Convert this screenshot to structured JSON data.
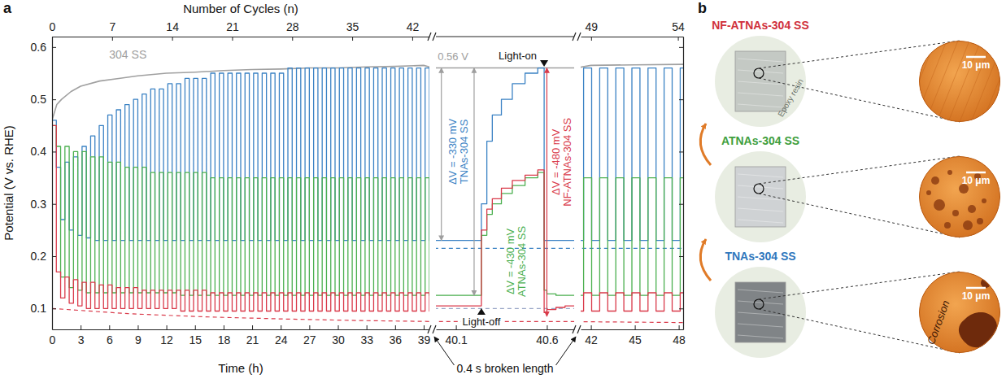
{
  "chart_data": {
    "type": "line",
    "panel_label": "a",
    "x_label": "Time (h)",
    "x2_label": "Number of Cycles (n)",
    "y_label": "Potential (V vs. RHE)",
    "break_label": "0.4 s broken length",
    "ylim": [
      0.06,
      0.62
    ],
    "yticks": [
      0.1,
      0.2,
      0.3,
      0.4,
      0.5,
      0.6
    ],
    "segments": [
      {
        "xlim": [
          0,
          39.6
        ],
        "xticks": [
          0,
          3,
          6,
          9,
          12,
          15,
          18,
          21,
          24,
          27,
          30,
          33,
          36,
          39
        ],
        "x2lim": [
          0,
          44
        ],
        "x2ticks": [
          0,
          7,
          14,
          21,
          28,
          35,
          42
        ]
      },
      {
        "xlim": [
          39.99,
          40.75
        ],
        "xticks": [
          40.1,
          40.6
        ]
      },
      {
        "xlim": [
          41.3,
          48.3
        ],
        "xticks": [
          42,
          45,
          48
        ],
        "x2lim": [
          48.4,
          54.3
        ],
        "x2ticks": [
          49,
          54
        ]
      }
    ],
    "x": [
      0,
      0.45,
      0.9,
      1.35,
      1.8,
      2.25,
      2.7,
      3.15,
      3.6,
      4.05,
      4.5,
      4.95,
      5.4,
      5.85,
      6.3,
      6.75,
      7.2,
      7.65,
      8.1,
      8.55,
      9,
      9.45,
      9.9,
      10.35,
      10.8,
      11.25,
      11.7,
      12.15,
      12.6,
      13.05,
      13.5,
      13.95,
      14.4,
      14.85,
      15.3,
      15.75,
      16.2,
      16.65,
      17.1,
      17.55,
      18,
      18.45,
      18.9,
      19.35,
      19.8,
      20.25,
      20.7,
      21.15,
      21.6,
      22.05,
      22.5,
      22.95,
      23.4,
      23.85,
      24.3,
      24.75,
      25.2,
      25.65,
      26.1,
      26.55,
      27,
      27.45,
      27.9,
      28.35,
      28.8,
      29.25,
      29.7,
      30.15,
      30.6,
      31.05,
      31.5,
      31.95,
      32.4,
      32.85,
      33.3,
      33.75,
      34.2,
      34.65,
      35.1,
      35.55,
      36,
      36.45,
      36.9,
      37.35,
      37.8,
      38.25,
      38.7,
      39.15,
      39.6,
      39.95,
      40.24,
      40.27,
      40.3,
      40.35,
      40.41,
      40.48,
      40.55,
      40.585,
      40.6,
      40.65,
      40.7,
      40.8,
      41.2,
      41.5,
      42.05,
      42.6,
      43.15,
      43.7,
      44.25,
      44.8,
      45.35,
      45.9,
      46.45,
      47,
      47.55,
      48.1,
      48.5
    ],
    "series": [
      {
        "name": "304 SS",
        "color": "#a0a0a0",
        "line_style": "solid",
        "x": [
          0,
          0.5,
          1,
          2,
          3,
          5,
          7,
          9,
          12,
          15,
          18,
          21,
          24,
          27,
          30,
          33,
          36,
          39,
          40,
          41,
          42,
          45,
          48.5
        ],
        "values": [
          0.46,
          0.49,
          0.5,
          0.515,
          0.525,
          0.535,
          0.54,
          0.545,
          0.55,
          0.552,
          0.555,
          0.557,
          0.558,
          0.56,
          0.56,
          0.562,
          0.563,
          0.565,
          0.56,
          0.56,
          0.565,
          0.566,
          0.567
        ]
      },
      {
        "name": "TNAs-304 SS",
        "color": "#3b82c4",
        "line_style": "step",
        "values": [
          0.46,
          0.37,
          0.27,
          0.38,
          0.25,
          0.39,
          0.24,
          0.41,
          0.235,
          0.43,
          0.23,
          0.45,
          0.23,
          0.47,
          0.23,
          0.48,
          0.23,
          0.49,
          0.23,
          0.5,
          0.23,
          0.51,
          0.23,
          0.52,
          0.23,
          0.52,
          0.23,
          0.53,
          0.23,
          0.53,
          0.23,
          0.54,
          0.23,
          0.54,
          0.23,
          0.54,
          0.23,
          0.55,
          0.23,
          0.55,
          0.23,
          0.55,
          0.23,
          0.55,
          0.23,
          0.55,
          0.23,
          0.55,
          0.23,
          0.55,
          0.23,
          0.55,
          0.23,
          0.55,
          0.23,
          0.56,
          0.23,
          0.56,
          0.23,
          0.56,
          0.23,
          0.56,
          0.23,
          0.56,
          0.23,
          0.56,
          0.23,
          0.56,
          0.23,
          0.56,
          0.23,
          0.56,
          0.23,
          0.56,
          0.23,
          0.56,
          0.23,
          0.56,
          0.23,
          0.56,
          0.23,
          0.56,
          0.23,
          0.56,
          0.23,
          0.56,
          0.23,
          0.56,
          0.23,
          0.23,
          0.3,
          0.42,
          0.47,
          0.5,
          0.53,
          0.55,
          0.56,
          0.23,
          0.23,
          0.23,
          0.23,
          0.23,
          0.23,
          0.56,
          0.23,
          0.56,
          0.23,
          0.56,
          0.23,
          0.56,
          0.23,
          0.56,
          0.23,
          0.56,
          0.23,
          0.56,
          0.23
        ]
      },
      {
        "name": "ATNAs-304 SS",
        "color": "#4cb050",
        "line_style": "step",
        "values": [
          0.45,
          0.41,
          0.16,
          0.41,
          0.14,
          0.4,
          0.135,
          0.4,
          0.13,
          0.39,
          0.13,
          0.39,
          0.13,
          0.38,
          0.13,
          0.38,
          0.13,
          0.37,
          0.13,
          0.37,
          0.13,
          0.37,
          0.13,
          0.36,
          0.13,
          0.36,
          0.13,
          0.36,
          0.13,
          0.36,
          0.125,
          0.36,
          0.125,
          0.36,
          0.125,
          0.36,
          0.125,
          0.35,
          0.125,
          0.35,
          0.125,
          0.35,
          0.125,
          0.35,
          0.125,
          0.35,
          0.125,
          0.35,
          0.125,
          0.35,
          0.125,
          0.35,
          0.125,
          0.35,
          0.125,
          0.35,
          0.125,
          0.35,
          0.125,
          0.35,
          0.125,
          0.35,
          0.125,
          0.35,
          0.125,
          0.35,
          0.125,
          0.35,
          0.125,
          0.35,
          0.125,
          0.35,
          0.125,
          0.35,
          0.125,
          0.35,
          0.125,
          0.35,
          0.125,
          0.35,
          0.125,
          0.35,
          0.125,
          0.35,
          0.125,
          0.35,
          0.125,
          0.35,
          0.125,
          0.125,
          0.24,
          0.28,
          0.3,
          0.32,
          0.335,
          0.35,
          0.36,
          0.135,
          0.128,
          0.125,
          0.125,
          0.125,
          0.125,
          0.35,
          0.125,
          0.35,
          0.125,
          0.35,
          0.125,
          0.35,
          0.125,
          0.35,
          0.125,
          0.35,
          0.125,
          0.35,
          0.125
        ]
      },
      {
        "name": "NF-ATNAs-304 SS",
        "color": "#d93a4a",
        "line_style": "step",
        "values": [
          0.45,
          0.17,
          0.12,
          0.16,
          0.11,
          0.155,
          0.105,
          0.15,
          0.1,
          0.15,
          0.1,
          0.145,
          0.1,
          0.145,
          0.1,
          0.14,
          0.1,
          0.14,
          0.1,
          0.14,
          0.1,
          0.135,
          0.1,
          0.135,
          0.1,
          0.135,
          0.1,
          0.135,
          0.1,
          0.135,
          0.095,
          0.135,
          0.095,
          0.135,
          0.095,
          0.135,
          0.095,
          0.13,
          0.095,
          0.13,
          0.095,
          0.13,
          0.095,
          0.13,
          0.095,
          0.13,
          0.095,
          0.13,
          0.095,
          0.13,
          0.095,
          0.13,
          0.095,
          0.13,
          0.095,
          0.13,
          0.095,
          0.13,
          0.095,
          0.13,
          0.095,
          0.13,
          0.095,
          0.13,
          0.095,
          0.13,
          0.095,
          0.13,
          0.095,
          0.13,
          0.095,
          0.13,
          0.095,
          0.13,
          0.095,
          0.13,
          0.095,
          0.13,
          0.095,
          0.13,
          0.095,
          0.13,
          0.095,
          0.13,
          0.095,
          0.13,
          0.095,
          0.13,
          0.095,
          0.105,
          0.25,
          0.29,
          0.31,
          0.33,
          0.345,
          0.355,
          0.365,
          0.092,
          0.098,
          0.102,
          0.105,
          0.105,
          0.095,
          0.13,
          0.095,
          0.13,
          0.095,
          0.13,
          0.095,
          0.13,
          0.095,
          0.13,
          0.095,
          0.13,
          0.095,
          0.13,
          0.095
        ]
      }
    ],
    "reference_lines": [
      {
        "color": "#3b82c4",
        "line_style": "dashed",
        "x": [
          39.9,
          48.5
        ],
        "values": [
          0.215,
          0.215
        ]
      },
      {
        "color": "#9aa7c7",
        "line_style": "dashed",
        "x": [
          39.9,
          40.8
        ],
        "values": [
          0.1,
          0.1
        ]
      },
      {
        "color": "#d93a4a",
        "line_style": "dashed",
        "x": [
          0,
          8,
          16,
          24,
          32,
          40,
          48.5
        ],
        "values": [
          0.1,
          0.09,
          0.084,
          0.08,
          0.077,
          0.075,
          0.073
        ]
      }
    ],
    "arrows": [
      {
        "x": 40.02,
        "from": 0.56,
        "to": 0.23,
        "color": "#9e9e9e"
      },
      {
        "x": 40.2,
        "from": 0.56,
        "to": 0.125,
        "color": "#9e9e9e"
      },
      {
        "x": 40.6,
        "from": 0.56,
        "to": 0.085,
        "color": "#d93a4a"
      }
    ],
    "events": [
      {
        "label": "Light-on",
        "x": 40.585,
        "marker": "triangle-down"
      },
      {
        "label": "Light-off",
        "x": 40.24,
        "marker": "triangle-up"
      }
    ],
    "annotations": [
      {
        "series": 0,
        "x": 6,
        "y": 0.578
      },
      {
        "text": "0.56 V",
        "x": 40.0,
        "y": 0.575,
        "color": "#9e9e9e"
      },
      {
        "text": "ΔV = -330 mV",
        "series": 1,
        "x": 40.11,
        "y": 0.4
      },
      {
        "text": "ΔV = -430 mV",
        "series": 2,
        "x": 40.43,
        "y": 0.19
      },
      {
        "text": "ΔV = -480 mV",
        "series": 3,
        "x": 40.68,
        "y": 0.38
      }
    ]
  },
  "image_panel": {
    "panel_label": "b",
    "samples": [
      {
        "label": "NF-ATNAs-304 SS",
        "color": "#d0303c",
        "scale_bar": "10 μm"
      },
      {
        "label": "ATNAs-304 SS",
        "color": "#3f9f3f",
        "scale_bar": "10 μm"
      },
      {
        "label": "TNAs-304 SS",
        "color": "#2f77bd",
        "scale_bar": "10 μm"
      }
    ],
    "epoxy_label": "Epoxy resin",
    "corrosion_label": "Corrosion"
  }
}
